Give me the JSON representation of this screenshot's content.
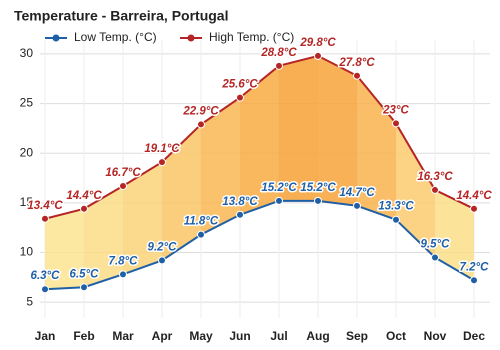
{
  "chart_data": {
    "type": "line",
    "title": "Temperature - Barreira, Portugal",
    "categories": [
      "Jan",
      "Feb",
      "Mar",
      "Apr",
      "May",
      "Jun",
      "Jul",
      "Aug",
      "Sep",
      "Oct",
      "Nov",
      "Dec"
    ],
    "series": [
      {
        "name": "Low Temp. (°C)",
        "color": "#1f5fa6",
        "values": [
          6.3,
          6.5,
          7.8,
          9.2,
          11.8,
          13.8,
          15.2,
          15.2,
          14.7,
          13.3,
          9.5,
          7.2
        ],
        "value_labels": [
          "6.3°C",
          "6.5°C",
          "7.8°C",
          "9.2°C",
          "11.8°C",
          "13.8°C",
          "15.2°C",
          "15.2°C",
          "14.7°C",
          "13.3°C",
          "9.5°C",
          "7.2°C"
        ]
      },
      {
        "name": "High Temp. (°C)",
        "color": "#b52525",
        "values": [
          13.4,
          14.4,
          16.7,
          19.1,
          22.9,
          25.6,
          28.8,
          29.8,
          27.8,
          23,
          16.3,
          14.4
        ],
        "value_labels": [
          "13.4°C",
          "14.4°C",
          "16.7°C",
          "19.1°C",
          "22.9°C",
          "25.6°C",
          "28.8°C",
          "29.8°C",
          "27.8°C",
          "23°C",
          "16.3°C",
          "14.4°C"
        ]
      }
    ],
    "ylim": [
      3.4,
      31
    ],
    "yticks": [
      5,
      10,
      15,
      20,
      25,
      30
    ],
    "grid": true
  }
}
